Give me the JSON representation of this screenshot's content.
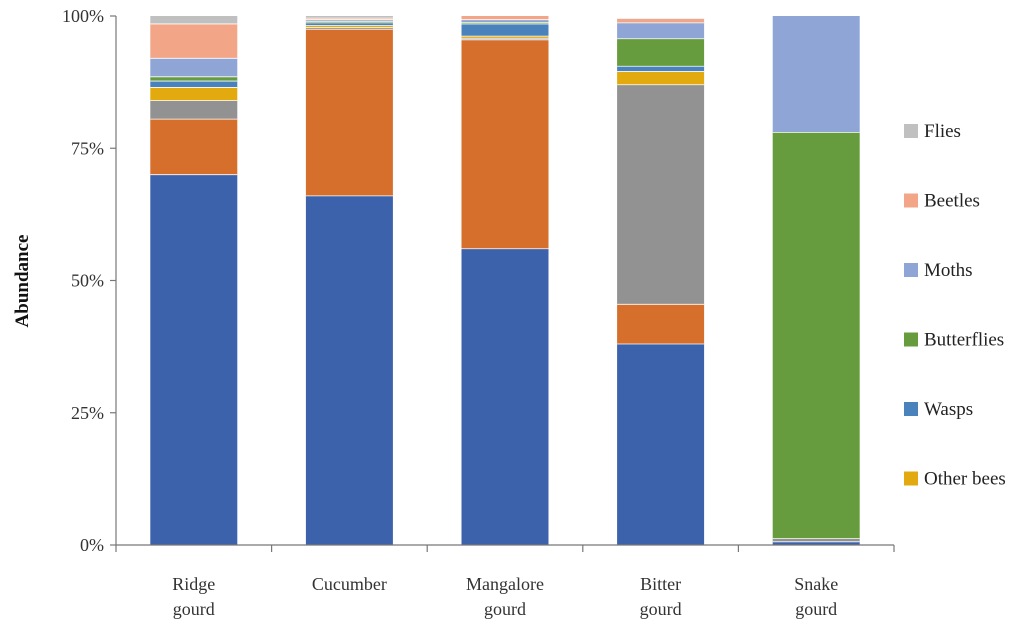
{
  "chart_data": {
    "type": "bar",
    "stacked": true,
    "categories": [
      [
        "Ridge",
        "gourd"
      ],
      [
        "Cucumber"
      ],
      [
        "Mangalore",
        "gourd"
      ],
      [
        "Bitter",
        "gourd"
      ],
      [
        "Snake",
        "gourd"
      ]
    ],
    "ylabel": "Abundance",
    "ylim": [
      0,
      100
    ],
    "yticks": [
      "0%",
      "25%",
      "50%",
      "75%",
      "100%"
    ],
    "ytick_values": [
      0,
      25,
      50,
      75,
      100
    ],
    "series": [
      {
        "name": "",
        "color": "#3c62ab",
        "values": [
          70,
          66,
          56,
          38,
          0.6
        ]
      },
      {
        "name": "",
        "color": "#d66f2b",
        "values": [
          10.5,
          31.5,
          39.5,
          7.5,
          0
        ]
      },
      {
        "name": "",
        "color": "#929292",
        "values": [
          3.5,
          0.3,
          0.3,
          41.5,
          0.6
        ]
      },
      {
        "name": "Other bees",
        "color": "#e3aa10",
        "values": [
          2.5,
          0.4,
          0.4,
          2.5,
          0
        ]
      },
      {
        "name": "Wasps",
        "color": "#4a83bb",
        "values": [
          1.2,
          0.5,
          2.3,
          1.0,
          0
        ]
      },
      {
        "name": "Butterflies",
        "color": "#669b3e",
        "values": [
          0.8,
          0.3,
          0.3,
          5.2,
          76.8
        ]
      },
      {
        "name": "Moths",
        "color": "#8fa5d6",
        "values": [
          3.5,
          0.3,
          0.5,
          3.0,
          22.0
        ]
      },
      {
        "name": "Beetles",
        "color": "#f2a687",
        "values": [
          6.5,
          0.3,
          0.7,
          0.8,
          0
        ]
      },
      {
        "name": "Flies",
        "color": "#c0c0c0",
        "values": [
          1.5,
          0.4,
          0.0,
          0.2,
          0
        ]
      }
    ],
    "legend": {
      "placement": "right",
      "entries": [
        "Flies",
        "Beetles",
        "Moths",
        "Butterflies",
        "Wasps",
        "Other bees"
      ]
    }
  }
}
